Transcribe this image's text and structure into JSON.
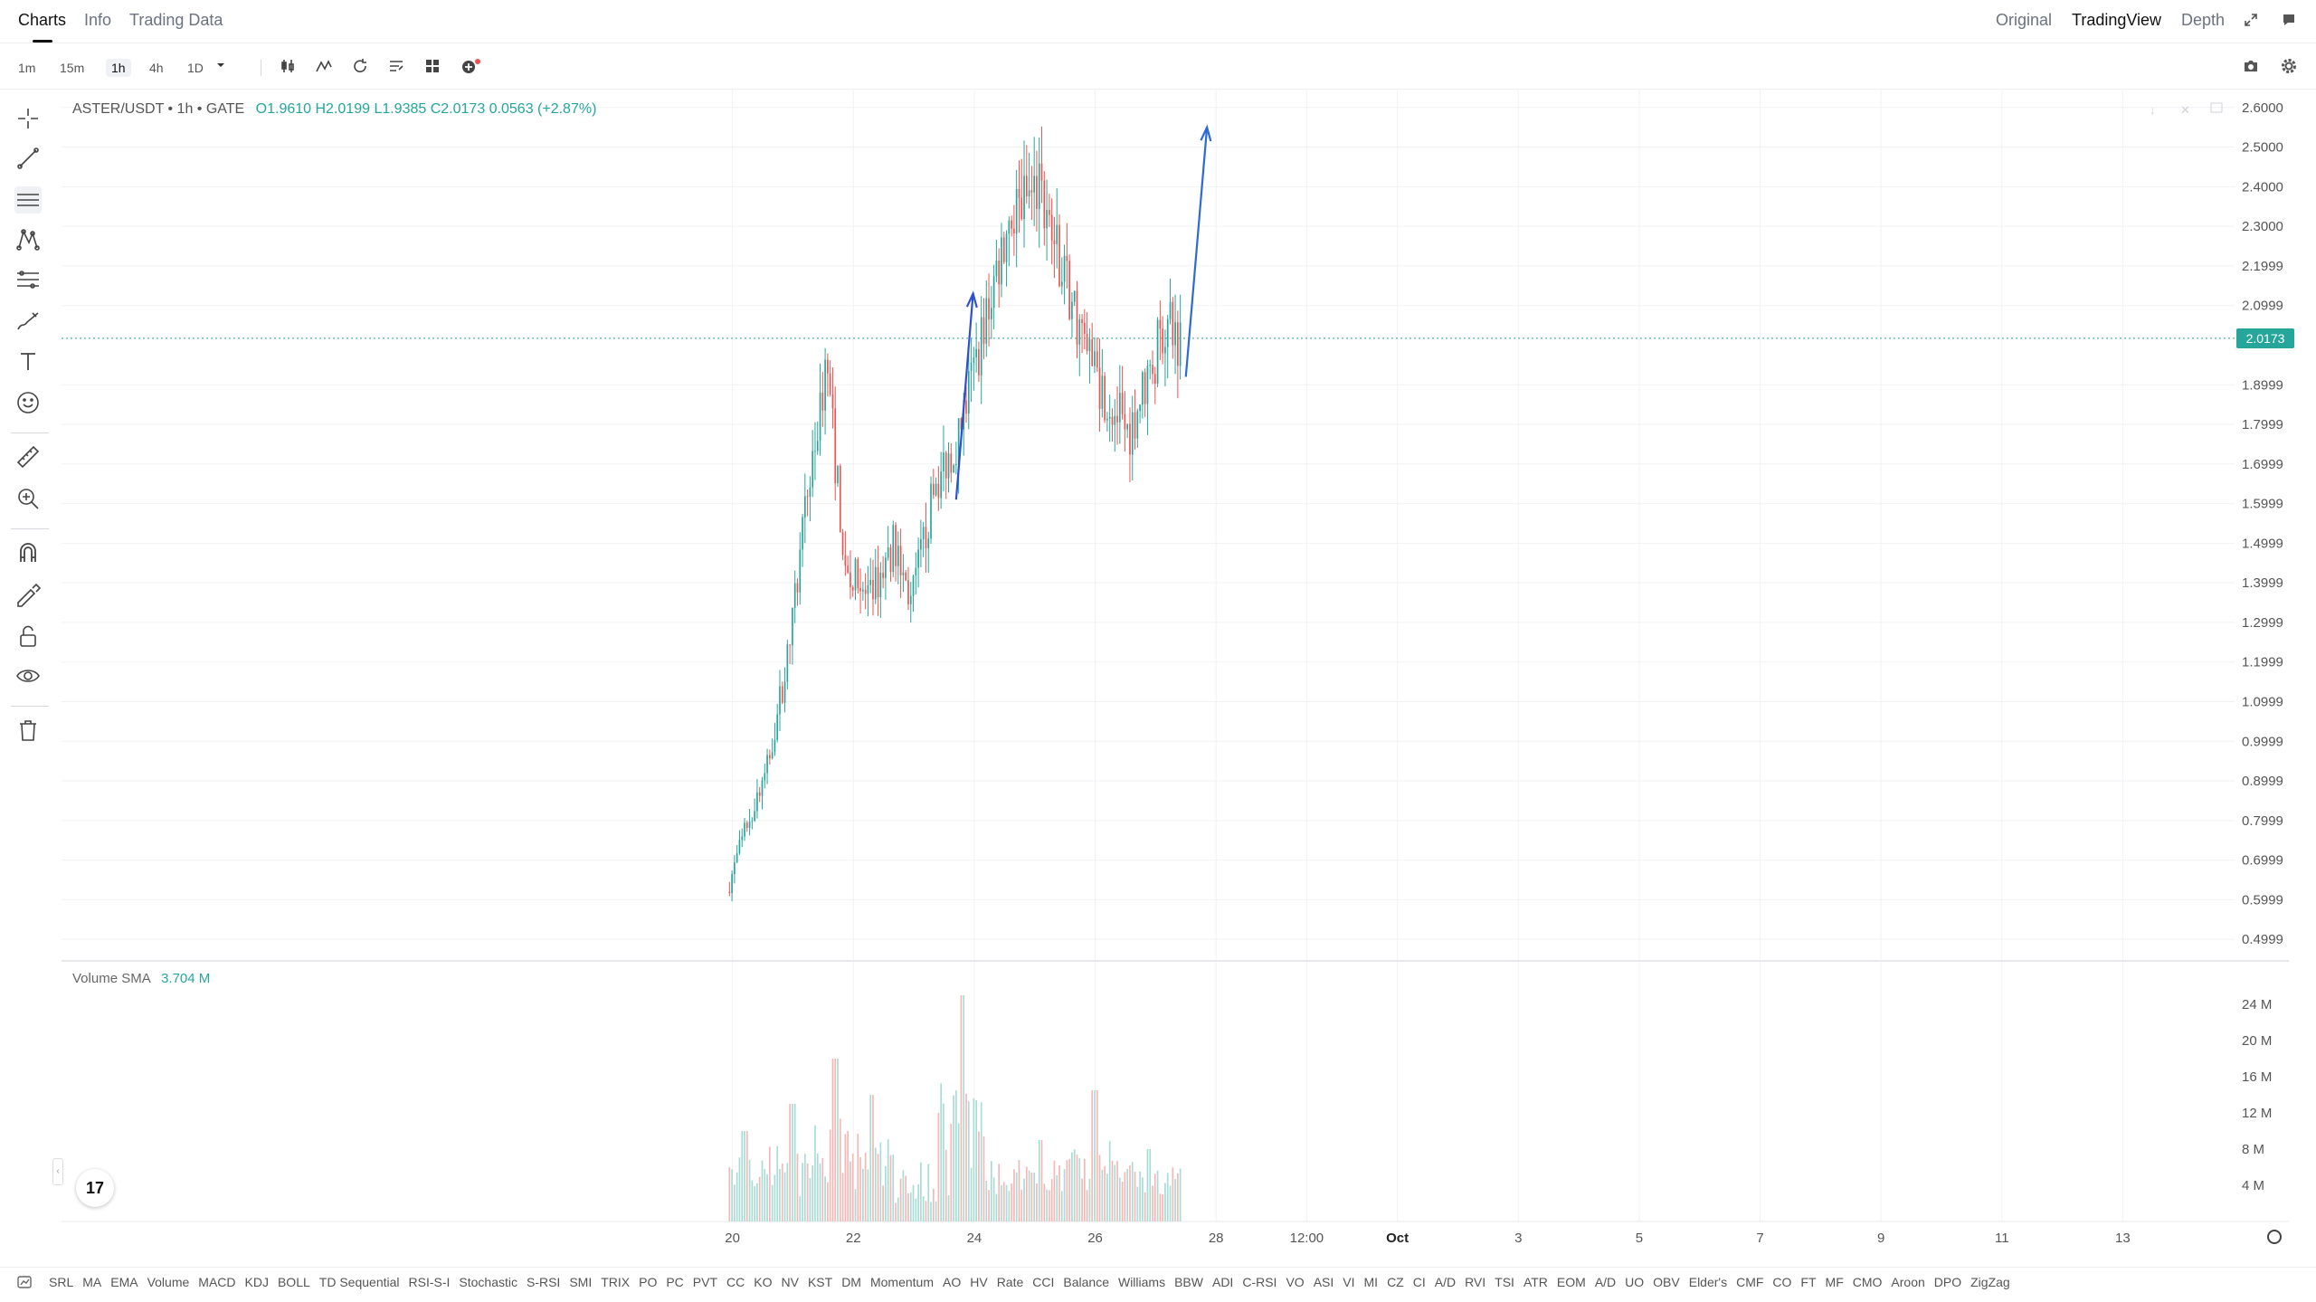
{
  "tabs": [
    {
      "label": "Charts",
      "active": true
    },
    {
      "label": "Info",
      "active": false
    },
    {
      "label": "Trading Data",
      "active": false
    }
  ],
  "views": [
    {
      "label": "Original",
      "active": false
    },
    {
      "label": "TradingView",
      "active": true
    },
    {
      "label": "Depth",
      "active": false
    }
  ],
  "intervals": [
    {
      "label": "1m",
      "active": false
    },
    {
      "label": "15m",
      "active": false
    },
    {
      "label": "1h",
      "active": true
    },
    {
      "label": "4h",
      "active": false
    },
    {
      "label": "1D",
      "active": false
    }
  ],
  "legend": {
    "symbol": "ASTER/USDT • 1h • GATE",
    "ohlc": "O1.9610  H2.0199  L1.9385  C2.0173  0.0563 (+2.87%)"
  },
  "volume_legend": {
    "label": "Volume SMA",
    "value": "3.704 M"
  },
  "last_price": "2.0173",
  "logo_text": "17",
  "indicators": [
    "SRL",
    "MA",
    "EMA",
    "Volume",
    "MACD",
    "KDJ",
    "BOLL",
    "TD Sequential",
    "RSI-S-I",
    "Stochastic",
    "S-RSI",
    "SMI",
    "TRIX",
    "PO",
    "PC",
    "PVT",
    "CC",
    "KO",
    "NV",
    "KST",
    "DM",
    "Momentum",
    "AO",
    "HV",
    "Rate",
    "CCI",
    "Balance",
    "Williams",
    "BBW",
    "ADI",
    "C-RSI",
    "VO",
    "ASI",
    "VI",
    "MI",
    "CZ",
    "CI",
    "A/D",
    "RVI",
    "TSI",
    "ATR",
    "EOM",
    "A/D",
    "UO",
    "OBV",
    "Elder's",
    "CMF",
    "CO",
    "FT",
    "MF",
    "CMO",
    "Aroon",
    "DPO",
    "ZigZag"
  ],
  "chart_data": {
    "type": "candlestick",
    "symbol": "ASTER/USDT",
    "interval": "1h",
    "exchange": "GATE",
    "y_ticks": [
      "2.6000",
      "2.5000",
      "2.4000",
      "2.3000",
      "2.1999",
      "2.0999",
      "1.8999",
      "1.7999",
      "1.6999",
      "1.5999",
      "1.4999",
      "1.3999",
      "1.2999",
      "1.1999",
      "1.0999",
      "0.9999",
      "0.8999",
      "0.7999",
      "0.6999",
      "0.5999",
      "0.4999"
    ],
    "ylim": [
      0.45,
      2.62
    ],
    "volume_ticks": [
      "24 M",
      "20 M",
      "16 M",
      "12 M",
      "8 M",
      "4 M"
    ],
    "volume_ylim": [
      0,
      26
    ],
    "x_ticks": [
      {
        "label": "20",
        "day": 20
      },
      {
        "label": "22",
        "day": 22
      },
      {
        "label": "24",
        "day": 24
      },
      {
        "label": "26",
        "day": 26
      },
      {
        "label": "28",
        "day": 28
      },
      {
        "label": "12:00",
        "day": 29.5
      },
      {
        "label": "Oct",
        "day": 31
      },
      {
        "label": "3",
        "day": 33
      },
      {
        "label": "5",
        "day": 35
      },
      {
        "label": "7",
        "day": 37
      },
      {
        "label": "9",
        "day": 39
      },
      {
        "label": "11",
        "day": 41
      },
      {
        "label": "13",
        "day": 43
      }
    ],
    "xlim_days": [
      8.9,
      44.85
    ],
    "last_price": 2.0173,
    "path_anchors": [
      [
        19.95,
        0.62
      ],
      [
        20.3,
        0.8
      ],
      [
        20.6,
        0.92
      ],
      [
        21.0,
        1.25
      ],
      [
        21.3,
        1.65
      ],
      [
        21.6,
        1.95
      ],
      [
        21.9,
        1.45
      ],
      [
        22.3,
        1.35
      ],
      [
        22.7,
        1.5
      ],
      [
        23.0,
        1.35
      ],
      [
        23.4,
        1.65
      ],
      [
        23.8,
        1.78
      ],
      [
        24.2,
        2.05
      ],
      [
        24.6,
        2.32
      ],
      [
        25.1,
        2.4
      ],
      [
        25.5,
        2.2
      ],
      [
        25.9,
        1.98
      ],
      [
        26.3,
        1.85
      ],
      [
        26.6,
        1.78
      ],
      [
        26.9,
        1.92
      ],
      [
        27.2,
        2.05
      ],
      [
        27.45,
        2.02
      ]
    ],
    "volume_peaks": [
      {
        "day": 21.7,
        "value": 18
      },
      {
        "day": 21.0,
        "value": 13
      },
      {
        "day": 22.3,
        "value": 14
      },
      {
        "day": 23.8,
        "value": 25
      },
      {
        "day": 26.0,
        "value": 14.5
      },
      {
        "day": 25.1,
        "value": 9
      },
      {
        "day": 26.9,
        "value": 8
      },
      {
        "day": 20.2,
        "value": 10
      }
    ],
    "drawings": [
      {
        "type": "arrow",
        "from": [
          23.7,
          1.61
        ],
        "to": [
          23.98,
          2.13
        ],
        "color": "#2e4fcf"
      },
      {
        "type": "arrow",
        "from": [
          27.5,
          1.92
        ],
        "to": [
          27.85,
          2.55
        ],
        "color": "#2e6ad6"
      }
    ],
    "up_color": "#26a69a",
    "down_color": "#ef5350",
    "grid": true
  }
}
